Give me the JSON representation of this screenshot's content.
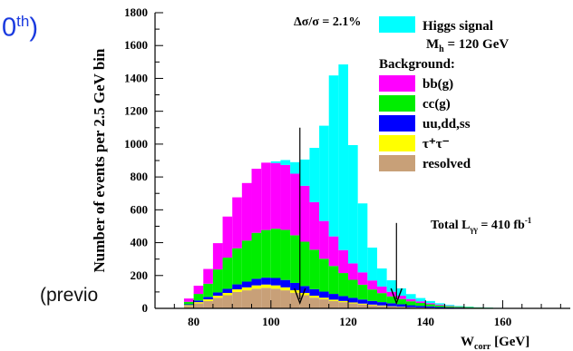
{
  "fragments": {
    "top_text": "0",
    "top_sup": "th",
    "top_close": ")",
    "bottom_text": "(previo"
  },
  "chart_data": {
    "type": "bar",
    "stacked": true,
    "ylabel": "Number of events per 2.5 GeV bin",
    "xlabel_main": "W",
    "xlabel_sub": "corr",
    "xlabel_unit": " [GeV]",
    "xlim": [
      70,
      177.5
    ],
    "ylim": [
      0,
      1800
    ],
    "x_ticks": [
      80,
      100,
      120,
      140,
      160
    ],
    "y_ticks": [
      0,
      200,
      400,
      600,
      800,
      1000,
      1200,
      1400,
      1600,
      1800
    ],
    "bin_width": 2.5,
    "bin_starts": [
      77.5,
      80,
      82.5,
      85,
      87.5,
      90,
      92.5,
      95,
      97.5,
      100,
      102.5,
      105,
      107.5,
      110,
      112.5,
      115,
      117.5,
      120,
      122.5,
      125,
      127.5,
      130,
      132.5,
      135,
      137.5,
      140,
      142.5,
      145,
      147.5,
      150,
      152.5,
      155,
      157.5,
      160,
      162.5,
      165,
      167.5,
      170
    ],
    "series": [
      {
        "name": "resolved",
        "color": "#c8a078",
        "values": [
          15,
          30,
          45,
          65,
          80,
          100,
          110,
          120,
          125,
          120,
          110,
          95,
          80,
          65,
          55,
          45,
          38,
          30,
          24,
          19,
          15,
          11,
          8,
          6,
          4,
          3,
          2,
          1,
          1,
          1,
          0,
          0,
          0,
          0,
          0,
          0,
          0,
          0
        ]
      },
      {
        "name": "τ⁺τ⁻",
        "color": "#ffff00",
        "values": [
          5,
          8,
          10,
          12,
          14,
          16,
          18,
          20,
          20,
          20,
          18,
          16,
          14,
          12,
          10,
          8,
          7,
          6,
          5,
          4,
          3,
          2,
          2,
          1,
          1,
          1,
          0,
          0,
          0,
          0,
          0,
          0,
          0,
          0,
          0,
          0,
          0,
          0
        ]
      },
      {
        "name": "uu,dd,ss",
        "color": "#0000ff",
        "values": [
          5,
          10,
          15,
          20,
          25,
          30,
          35,
          40,
          42,
          45,
          45,
          44,
          42,
          40,
          37,
          35,
          30,
          28,
          25,
          22,
          20,
          18,
          15,
          12,
          10,
          8,
          6,
          5,
          4,
          3,
          2,
          2,
          1,
          1,
          1,
          0,
          0,
          0
        ]
      },
      {
        "name": "cc(g)",
        "color": "#00ee00",
        "values": [
          15,
          40,
          80,
          140,
          190,
          220,
          250,
          280,
          290,
          300,
          305,
          290,
          270,
          240,
          200,
          170,
          140,
          110,
          90,
          70,
          55,
          42,
          32,
          24,
          18,
          13,
          10,
          7,
          5,
          4,
          3,
          2,
          1,
          1,
          0,
          0,
          0,
          0
        ]
      },
      {
        "name": "bb(g)",
        "color": "#ff00ff",
        "values": [
          20,
          50,
          90,
          160,
          250,
          310,
          350,
          390,
          410,
          400,
          395,
          375,
          340,
          290,
          230,
          180,
          140,
          100,
          75,
          55,
          40,
          28,
          20,
          14,
          10,
          7,
          5,
          3,
          2,
          1,
          1,
          0,
          0,
          0,
          0,
          0,
          0,
          0
        ]
      },
      {
        "name": "Higgs signal",
        "color": "#00ffff",
        "values": [
          0,
          0,
          0,
          0,
          0,
          0,
          0,
          0,
          0,
          10,
          30,
          70,
          160,
          330,
          580,
          980,
          1130,
          720,
          420,
          200,
          110,
          70,
          45,
          30,
          20,
          13,
          8,
          5,
          3,
          2,
          1,
          1,
          1,
          0,
          0,
          0,
          0,
          0
        ]
      }
    ],
    "legend": {
      "signal": "Higgs signal",
      "mass_label": "M",
      "mass_sub": "h",
      "mass_value": " = 120 GeV",
      "background_header": "Background:",
      "items": [
        {
          "key": "bb",
          "label": "bb(g)",
          "color": "#ff00ff"
        },
        {
          "key": "cc",
          "label": "cc(g)",
          "color": "#00ee00"
        },
        {
          "key": "light",
          "label": "uu,dd,ss",
          "color": "#0000ff"
        },
        {
          "key": "tautau",
          "label": "τ⁺τ⁻",
          "color": "#ffff00"
        },
        {
          "key": "resolved",
          "label": "resolved",
          "color": "#c8a078"
        }
      ]
    },
    "annotations": {
      "resolution": "Δσ/σ = 2.1%",
      "lumi_prefix": "Total L",
      "lumi_sub": "γγ",
      "lumi_mid": " = 410 fb",
      "lumi_sup": "-1"
    },
    "arrows_at_x": [
      107.5,
      132.5
    ]
  }
}
